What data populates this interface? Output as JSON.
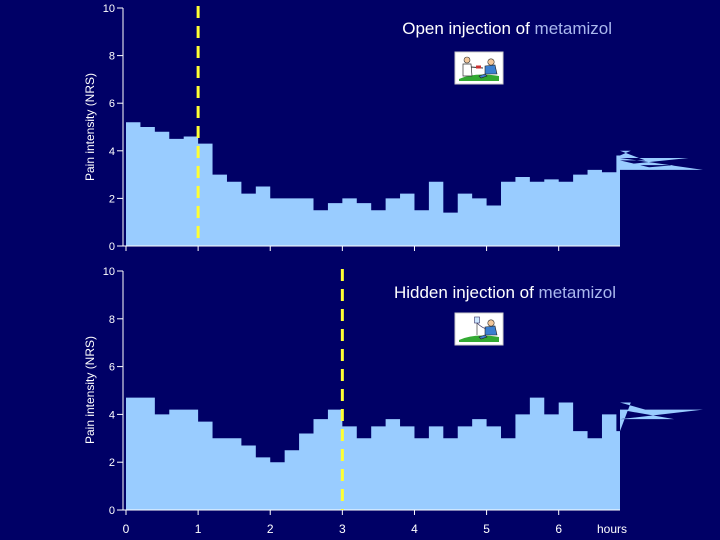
{
  "colors": {
    "background": "#000066",
    "area_fill": "#99ccff",
    "marker_line": "#ffff33",
    "text": "#ffffff",
    "drug_name": "#aab8ee"
  },
  "chart_data": [
    {
      "type": "area",
      "title_prefix": "Open injection of",
      "title_drug": "metamizol",
      "ylabel": "Pain intensity (NRS)",
      "ylim": [
        0,
        10
      ],
      "yticks": [
        0,
        2,
        4,
        6,
        8,
        10
      ],
      "xlim": [
        0,
        6.85
      ],
      "xticks": [],
      "xlabel": "",
      "injection_time": 1.0,
      "icon": "doctor-injecting-patient-icon",
      "step_width": 0.2,
      "values": [
        5.2,
        5.0,
        4.8,
        4.5,
        4.6,
        4.3,
        3.0,
        2.7,
        2.2,
        2.5,
        2.0,
        2.0,
        2.0,
        1.5,
        1.8,
        2.0,
        1.8,
        1.5,
        2.0,
        2.2,
        1.5,
        2.7,
        1.4,
        2.2,
        2.0,
        1.7,
        2.7,
        2.9,
        2.7,
        2.8,
        2.7,
        3.0,
        3.2,
        3.1,
        3.8,
        4.0,
        3.6,
        3.2,
        3.4,
        3.7,
        3.2
      ]
    },
    {
      "type": "area",
      "title_prefix": "Hidden injection of",
      "title_drug": "metamizol",
      "ylabel": "Pain intensity (NRS)",
      "ylim": [
        0,
        10
      ],
      "yticks": [
        0,
        2,
        4,
        6,
        8,
        10
      ],
      "xlim": [
        0,
        6.85
      ],
      "xticks": [
        0,
        1,
        2,
        3,
        4,
        5,
        6
      ],
      "xlabel": "hours",
      "injection_time": 3.0,
      "icon": "patient-with-iv-icon",
      "step_width": 0.2,
      "values": [
        4.7,
        4.7,
        4.0,
        4.2,
        4.2,
        3.7,
        3.0,
        3.0,
        2.7,
        2.2,
        2.0,
        2.5,
        3.2,
        3.8,
        4.2,
        3.5,
        3.0,
        3.5,
        3.8,
        3.5,
        3.0,
        3.5,
        3.0,
        3.5,
        3.8,
        3.5,
        3.0,
        4.0,
        4.7,
        4.0,
        4.5,
        3.3,
        3.0,
        4.0,
        3.3,
        4.5,
        4.2,
        4.2,
        3.8,
        3.8,
        4.2
      ]
    }
  ]
}
